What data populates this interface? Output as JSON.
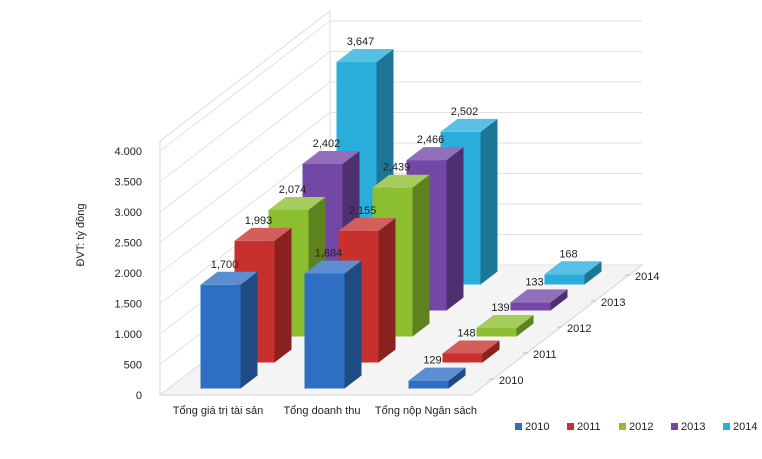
{
  "chart_data": {
    "type": "bar",
    "projection": "3d-depth",
    "ylabel": "ĐVT: tỷ đồng",
    "ylim": [
      0,
      4000
    ],
    "yticks": [
      {
        "value": 0,
        "label": "0"
      },
      {
        "value": 500,
        "label": "500"
      },
      {
        "value": 1000,
        "label": "1.000"
      },
      {
        "value": 1500,
        "label": "1.500"
      },
      {
        "value": 2000,
        "label": "2.000"
      },
      {
        "value": 2500,
        "label": "2.500"
      },
      {
        "value": 3000,
        "label": "3.000"
      },
      {
        "value": 3500,
        "label": "3.500"
      },
      {
        "value": 4000,
        "label": "4.000"
      }
    ],
    "categories": [
      "Tổng giá trị tài sản",
      "Tổng doanh thu",
      "Tổng nộp Ngân sách"
    ],
    "grid": true,
    "legend_position": "bottom-right",
    "series": [
      {
        "name": "2010",
        "color": "#2e6fc4",
        "values": [
          1700,
          1884,
          129
        ],
        "labels": [
          "1,700",
          "1,884",
          "129"
        ]
      },
      {
        "name": "2011",
        "color": "#c8302d",
        "values": [
          1993,
          2155,
          148
        ],
        "labels": [
          "1,993",
          "2,155",
          "148"
        ]
      },
      {
        "name": "2012",
        "color": "#8cbf2f",
        "values": [
          2074,
          2439,
          139
        ],
        "labels": [
          "2,074",
          "2,439",
          "139"
        ]
      },
      {
        "name": "2013",
        "color": "#7347a6",
        "values": [
          2402,
          2466,
          133
        ],
        "labels": [
          "2,402",
          "2,466",
          "133"
        ]
      },
      {
        "name": "2014",
        "color": "#29aedc",
        "values": [
          3647,
          2502,
          168
        ],
        "labels": [
          "3,647",
          "2,502",
          "168"
        ]
      }
    ]
  }
}
